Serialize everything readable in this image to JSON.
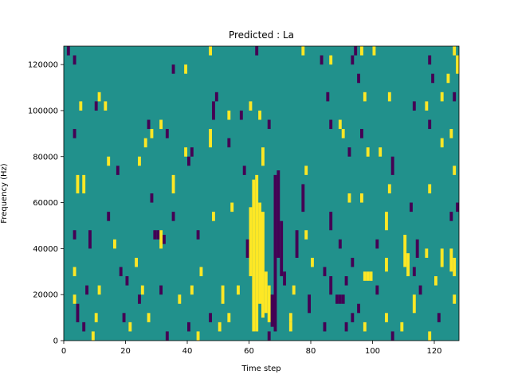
{
  "chart_data": {
    "type": "heatmap",
    "title": "Predicted : La",
    "xlabel": "Time step",
    "ylabel": "Frequency (Hz)",
    "xlim": [
      0,
      128
    ],
    "ylim": [
      0,
      128000
    ],
    "x_ticks": [
      0,
      20,
      40,
      60,
      80,
      100,
      120
    ],
    "y_ticks": [
      0,
      20000,
      40000,
      60000,
      80000,
      100000,
      120000
    ],
    "x_tick_labels": [
      "0",
      "20",
      "40",
      "60",
      "80",
      "100",
      "120"
    ],
    "y_tick_labels": [
      "0",
      "20000",
      "40000",
      "60000",
      "80000",
      "100000",
      "120000"
    ],
    "grid": false,
    "colormap": "viridis",
    "levels": [
      {
        "value": -1,
        "color": "#440154"
      },
      {
        "value": 0,
        "color": "#21918c"
      },
      {
        "value": 1,
        "color": "#fde725"
      }
    ],
    "background_value": 0,
    "cells": [
      {
        "x": 61,
        "y0": 4000,
        "y1": 70000,
        "value": 1
      },
      {
        "x": 62,
        "y0": 4000,
        "y1": 72000,
        "value": 1
      },
      {
        "x": 63,
        "y0": 16000,
        "y1": 60000,
        "value": 1
      },
      {
        "x": 64,
        "y0": 10000,
        "y1": 56000,
        "value": 1
      },
      {
        "x": 60,
        "y0": 28000,
        "y1": 58000,
        "value": 1
      },
      {
        "x": 65,
        "y0": 12000,
        "y1": 30000,
        "value": 1
      },
      {
        "x": 66,
        "y0": 8000,
        "y1": 24000,
        "value": 1
      },
      {
        "x": 68,
        "y0": 4000,
        "y1": 72000,
        "value": -1
      },
      {
        "x": 69,
        "y0": 36000,
        "y1": 74000,
        "value": -1
      },
      {
        "x": 67,
        "y0": 6000,
        "y1": 20000,
        "value": -1
      },
      {
        "x": 70,
        "y0": 28000,
        "y1": 52000,
        "value": -1
      },
      {
        "x": 71,
        "y0": 24000,
        "y1": 30000,
        "value": -1
      },
      {
        "x": 110,
        "y0": 32000,
        "y1": 46000,
        "value": 1
      },
      {
        "x": 111,
        "y0": 28000,
        "y1": 38000,
        "value": 1
      },
      {
        "x": 104,
        "y0": 30000,
        "y1": 36000,
        "value": 1
      },
      {
        "x": 97,
        "y0": 26000,
        "y1": 30000,
        "value": 1
      },
      {
        "x": 98,
        "y0": 26000,
        "y1": 30000,
        "value": 1
      },
      {
        "x": 99,
        "y0": 26000,
        "y1": 30000,
        "value": 1
      },
      {
        "x": 125,
        "y0": 30000,
        "y1": 40000,
        "value": 1
      },
      {
        "x": 126,
        "y0": 28000,
        "y1": 36000,
        "value": 1
      },
      {
        "x": 88,
        "y0": 16000,
        "y1": 20000,
        "value": -1
      },
      {
        "x": 89,
        "y0": 16000,
        "y1": 20000,
        "value": -1
      },
      {
        "x": 90,
        "y0": 16000,
        "y1": 20000,
        "value": -1
      },
      {
        "x": 31,
        "y0": 40000,
        "y1": 48000,
        "value": 1
      },
      {
        "x": 29,
        "y0": 44000,
        "y1": 48000,
        "value": -1
      },
      {
        "x": 30,
        "y0": 44000,
        "y1": 48000,
        "value": -1
      },
      {
        "x": 32,
        "y0": 42000,
        "y1": 46000,
        "value": -1
      },
      {
        "x": 1,
        "y0": 124000,
        "y1": 128000,
        "value": -1
      },
      {
        "x": 3,
        "y0": 120000,
        "y1": 124000,
        "value": -1
      },
      {
        "x": 47,
        "y0": 124000,
        "y1": 128000,
        "value": 1
      },
      {
        "x": 62,
        "y0": 124000,
        "y1": 128000,
        "value": -1
      },
      {
        "x": 77,
        "y0": 124000,
        "y1": 128000,
        "value": 1
      },
      {
        "x": 83,
        "y0": 120000,
        "y1": 124000,
        "value": -1
      },
      {
        "x": 86,
        "y0": 120000,
        "y1": 124000,
        "value": 1
      },
      {
        "x": 93,
        "y0": 120000,
        "y1": 124000,
        "value": -1
      },
      {
        "x": 94,
        "y0": 124000,
        "y1": 128000,
        "value": -1
      },
      {
        "x": 96,
        "y0": 124000,
        "y1": 128000,
        "value": 1
      },
      {
        "x": 100,
        "y0": 124000,
        "y1": 128000,
        "value": 1
      },
      {
        "x": 118,
        "y0": 120000,
        "y1": 124000,
        "value": -1
      },
      {
        "x": 126,
        "y0": 124000,
        "y1": 128000,
        "value": 1
      },
      {
        "x": 127,
        "y0": 116000,
        "y1": 124000,
        "value": 1
      },
      {
        "x": 35,
        "y0": 116000,
        "y1": 120000,
        "value": -1
      },
      {
        "x": 39,
        "y0": 116000,
        "y1": 120000,
        "value": 1
      },
      {
        "x": 95,
        "y0": 112000,
        "y1": 116000,
        "value": -1
      },
      {
        "x": 119,
        "y0": 112000,
        "y1": 116000,
        "value": -1
      },
      {
        "x": 124,
        "y0": 112000,
        "y1": 116000,
        "value": 1
      },
      {
        "x": 11,
        "y0": 104000,
        "y1": 108000,
        "value": 1
      },
      {
        "x": 5,
        "y0": 100000,
        "y1": 104000,
        "value": 1
      },
      {
        "x": 10,
        "y0": 100000,
        "y1": 104000,
        "value": -1
      },
      {
        "x": 13,
        "y0": 100000,
        "y1": 104000,
        "value": 1
      },
      {
        "x": 49,
        "y0": 104000,
        "y1": 108000,
        "value": -1
      },
      {
        "x": 48,
        "y0": 96000,
        "y1": 104000,
        "value": -1
      },
      {
        "x": 53,
        "y0": 96000,
        "y1": 100000,
        "value": 1
      },
      {
        "x": 57,
        "y0": 96000,
        "y1": 100000,
        "value": -1
      },
      {
        "x": 60,
        "y0": 100000,
        "y1": 104000,
        "value": 1
      },
      {
        "x": 63,
        "y0": 96000,
        "y1": 100000,
        "value": 1
      },
      {
        "x": 85,
        "y0": 104000,
        "y1": 108000,
        "value": -1
      },
      {
        "x": 97,
        "y0": 104000,
        "y1": 108000,
        "value": 1
      },
      {
        "x": 105,
        "y0": 104000,
        "y1": 108000,
        "value": 1
      },
      {
        "x": 113,
        "y0": 100000,
        "y1": 104000,
        "value": -1
      },
      {
        "x": 117,
        "y0": 100000,
        "y1": 104000,
        "value": 1
      },
      {
        "x": 122,
        "y0": 104000,
        "y1": 108000,
        "value": 1
      },
      {
        "x": 126,
        "y0": 104000,
        "y1": 108000,
        "value": -1
      },
      {
        "x": 27,
        "y0": 92000,
        "y1": 96000,
        "value": -1
      },
      {
        "x": 31,
        "y0": 92000,
        "y1": 96000,
        "value": 1
      },
      {
        "x": 66,
        "y0": 92000,
        "y1": 96000,
        "value": -1
      },
      {
        "x": 86,
        "y0": 92000,
        "y1": 96000,
        "value": -1
      },
      {
        "x": 89,
        "y0": 92000,
        "y1": 96000,
        "value": 1
      },
      {
        "x": 118,
        "y0": 92000,
        "y1": 96000,
        "value": -1
      },
      {
        "x": 3,
        "y0": 88000,
        "y1": 92000,
        "value": -1
      },
      {
        "x": 28,
        "y0": 88000,
        "y1": 92000,
        "value": 1
      },
      {
        "x": 33,
        "y0": 88000,
        "y1": 92000,
        "value": -1
      },
      {
        "x": 47,
        "y0": 84000,
        "y1": 92000,
        "value": 1
      },
      {
        "x": 53,
        "y0": 84000,
        "y1": 88000,
        "value": -1
      },
      {
        "x": 90,
        "y0": 88000,
        "y1": 92000,
        "value": 1
      },
      {
        "x": 96,
        "y0": 88000,
        "y1": 92000,
        "value": -1
      },
      {
        "x": 122,
        "y0": 84000,
        "y1": 88000,
        "value": 1
      },
      {
        "x": 125,
        "y0": 88000,
        "y1": 92000,
        "value": 1
      },
      {
        "x": 26,
        "y0": 84000,
        "y1": 88000,
        "value": 1
      },
      {
        "x": 39,
        "y0": 80000,
        "y1": 84000,
        "value": 1
      },
      {
        "x": 41,
        "y0": 80000,
        "y1": 84000,
        "value": -1
      },
      {
        "x": 40,
        "y0": 76000,
        "y1": 80000,
        "value": -1
      },
      {
        "x": 64,
        "y0": 76000,
        "y1": 84000,
        "value": 1
      },
      {
        "x": 92,
        "y0": 80000,
        "y1": 84000,
        "value": -1
      },
      {
        "x": 98,
        "y0": 80000,
        "y1": 84000,
        "value": 1
      },
      {
        "x": 102,
        "y0": 80000,
        "y1": 84000,
        "value": 1
      },
      {
        "x": 14,
        "y0": 76000,
        "y1": 80000,
        "value": 1
      },
      {
        "x": 24,
        "y0": 76000,
        "y1": 80000,
        "value": 1
      },
      {
        "x": 17,
        "y0": 72000,
        "y1": 76000,
        "value": -1
      },
      {
        "x": 78,
        "y0": 72000,
        "y1": 76000,
        "value": 1
      },
      {
        "x": 106,
        "y0": 72000,
        "y1": 80000,
        "value": -1
      },
      {
        "x": 126,
        "y0": 72000,
        "y1": 76000,
        "value": 1
      },
      {
        "x": 4,
        "y0": 64000,
        "y1": 72000,
        "value": 1
      },
      {
        "x": 6,
        "y0": 64000,
        "y1": 72000,
        "value": 1
      },
      {
        "x": 58,
        "y0": 72000,
        "y1": 76000,
        "value": -1
      },
      {
        "x": 35,
        "y0": 64000,
        "y1": 72000,
        "value": 1
      },
      {
        "x": 77,
        "y0": 56000,
        "y1": 68000,
        "value": -1
      },
      {
        "x": 92,
        "y0": 60000,
        "y1": 64000,
        "value": 1
      },
      {
        "x": 96,
        "y0": 60000,
        "y1": 64000,
        "value": 1
      },
      {
        "x": 105,
        "y0": 64000,
        "y1": 68000,
        "value": 1
      },
      {
        "x": 112,
        "y0": 56000,
        "y1": 60000,
        "value": -1
      },
      {
        "x": 118,
        "y0": 64000,
        "y1": 68000,
        "value": 1
      },
      {
        "x": 14,
        "y0": 52000,
        "y1": 56000,
        "value": -1
      },
      {
        "x": 28,
        "y0": 60000,
        "y1": 64000,
        "value": -1
      },
      {
        "x": 35,
        "y0": 52000,
        "y1": 56000,
        "value": -1
      },
      {
        "x": 48,
        "y0": 52000,
        "y1": 56000,
        "value": 1
      },
      {
        "x": 54,
        "y0": 56000,
        "y1": 60000,
        "value": 1
      },
      {
        "x": 86,
        "y0": 48000,
        "y1": 56000,
        "value": -1
      },
      {
        "x": 104,
        "y0": 48000,
        "y1": 56000,
        "value": 1
      },
      {
        "x": 125,
        "y0": 52000,
        "y1": 56000,
        "value": -1
      },
      {
        "x": 127,
        "y0": 56000,
        "y1": 60000,
        "value": -1
      },
      {
        "x": 3,
        "y0": 44000,
        "y1": 48000,
        "value": -1
      },
      {
        "x": 8,
        "y0": 40000,
        "y1": 48000,
        "value": -1
      },
      {
        "x": 16,
        "y0": 40000,
        "y1": 44000,
        "value": 1
      },
      {
        "x": 43,
        "y0": 44000,
        "y1": 48000,
        "value": -1
      },
      {
        "x": 59,
        "y0": 36000,
        "y1": 44000,
        "value": -1
      },
      {
        "x": 75,
        "y0": 36000,
        "y1": 48000,
        "value": -1
      },
      {
        "x": 78,
        "y0": 44000,
        "y1": 48000,
        "value": 1
      },
      {
        "x": 89,
        "y0": 40000,
        "y1": 44000,
        "value": -1
      },
      {
        "x": 101,
        "y0": 40000,
        "y1": 44000,
        "value": -1
      },
      {
        "x": 114,
        "y0": 36000,
        "y1": 44000,
        "value": -1
      },
      {
        "x": 117,
        "y0": 36000,
        "y1": 40000,
        "value": 1
      },
      {
        "x": 122,
        "y0": 32000,
        "y1": 40000,
        "value": 1
      },
      {
        "x": 3,
        "y0": 28000,
        "y1": 32000,
        "value": 1
      },
      {
        "x": 18,
        "y0": 28000,
        "y1": 32000,
        "value": -1
      },
      {
        "x": 23,
        "y0": 32000,
        "y1": 36000,
        "value": 1
      },
      {
        "x": 44,
        "y0": 28000,
        "y1": 32000,
        "value": 1
      },
      {
        "x": 80,
        "y0": 32000,
        "y1": 36000,
        "value": 1
      },
      {
        "x": 84,
        "y0": 28000,
        "y1": 32000,
        "value": -1
      },
      {
        "x": 93,
        "y0": 32000,
        "y1": 36000,
        "value": -1
      },
      {
        "x": 113,
        "y0": 28000,
        "y1": 32000,
        "value": -1
      },
      {
        "x": 7,
        "y0": 20000,
        "y1": 24000,
        "value": -1
      },
      {
        "x": 11,
        "y0": 20000,
        "y1": 24000,
        "value": 1
      },
      {
        "x": 20,
        "y0": 24000,
        "y1": 28000,
        "value": -1
      },
      {
        "x": 25,
        "y0": 20000,
        "y1": 24000,
        "value": 1
      },
      {
        "x": 31,
        "y0": 20000,
        "y1": 24000,
        "value": -1
      },
      {
        "x": 41,
        "y0": 20000,
        "y1": 24000,
        "value": 1
      },
      {
        "x": 51,
        "y0": 16000,
        "y1": 24000,
        "value": 1
      },
      {
        "x": 56,
        "y0": 20000,
        "y1": 24000,
        "value": 1
      },
      {
        "x": 74,
        "y0": 20000,
        "y1": 24000,
        "value": 1
      },
      {
        "x": 86,
        "y0": 20000,
        "y1": 28000,
        "value": -1
      },
      {
        "x": 91,
        "y0": 24000,
        "y1": 28000,
        "value": -1
      },
      {
        "x": 101,
        "y0": 20000,
        "y1": 24000,
        "value": -1
      },
      {
        "x": 115,
        "y0": 20000,
        "y1": 24000,
        "value": -1
      },
      {
        "x": 120,
        "y0": 24000,
        "y1": 28000,
        "value": 1
      },
      {
        "x": 3,
        "y0": 16000,
        "y1": 20000,
        "value": 1
      },
      {
        "x": 24,
        "y0": 16000,
        "y1": 20000,
        "value": -1
      },
      {
        "x": 37,
        "y0": 16000,
        "y1": 20000,
        "value": 1
      },
      {
        "x": 79,
        "y0": 12000,
        "y1": 20000,
        "value": -1
      },
      {
        "x": 95,
        "y0": 12000,
        "y1": 16000,
        "value": -1
      },
      {
        "x": 113,
        "y0": 12000,
        "y1": 20000,
        "value": 1
      },
      {
        "x": 126,
        "y0": 16000,
        "y1": 20000,
        "value": 1
      },
      {
        "x": 4,
        "y0": 8000,
        "y1": 16000,
        "value": -1
      },
      {
        "x": 10,
        "y0": 8000,
        "y1": 12000,
        "value": 1
      },
      {
        "x": 19,
        "y0": 8000,
        "y1": 12000,
        "value": -1
      },
      {
        "x": 27,
        "y0": 8000,
        "y1": 12000,
        "value": 1
      },
      {
        "x": 47,
        "y0": 8000,
        "y1": 12000,
        "value": -1
      },
      {
        "x": 53,
        "y0": 8000,
        "y1": 12000,
        "value": 1
      },
      {
        "x": 73,
        "y0": 8000,
        "y1": 12000,
        "value": 1
      },
      {
        "x": 93,
        "y0": 8000,
        "y1": 12000,
        "value": -1
      },
      {
        "x": 104,
        "y0": 8000,
        "y1": 12000,
        "value": 1
      },
      {
        "x": 121,
        "y0": 8000,
        "y1": 12000,
        "value": -1
      },
      {
        "x": 6,
        "y0": 4000,
        "y1": 8000,
        "value": -1
      },
      {
        "x": 21,
        "y0": 4000,
        "y1": 8000,
        "value": 1
      },
      {
        "x": 40,
        "y0": 4000,
        "y1": 8000,
        "value": -1
      },
      {
        "x": 50,
        "y0": 4000,
        "y1": 8000,
        "value": 1
      },
      {
        "x": 73,
        "y0": 4000,
        "y1": 8000,
        "value": 1
      },
      {
        "x": 84,
        "y0": 4000,
        "y1": 8000,
        "value": -1
      },
      {
        "x": 91,
        "y0": 4000,
        "y1": 8000,
        "value": -1
      },
      {
        "x": 97,
        "y0": 4000,
        "y1": 8000,
        "value": 1
      },
      {
        "x": 109,
        "y0": 4000,
        "y1": 8000,
        "value": 1
      },
      {
        "x": 9,
        "y0": 0,
        "y1": 4000,
        "value": 1
      },
      {
        "x": 33,
        "y0": 0,
        "y1": 4000,
        "value": -1
      },
      {
        "x": 43,
        "y0": 0,
        "y1": 4000,
        "value": 1
      },
      {
        "x": 66,
        "y0": 0,
        "y1": 4000,
        "value": -1
      },
      {
        "x": 106,
        "y0": 0,
        "y1": 4000,
        "value": -1
      },
      {
        "x": 118,
        "y0": 0,
        "y1": 4000,
        "value": 1
      }
    ]
  }
}
